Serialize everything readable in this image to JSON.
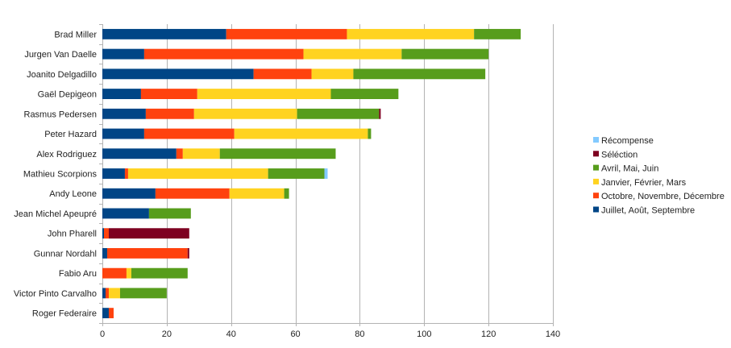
{
  "chart_data": {
    "type": "bar",
    "orientation": "horizontal",
    "stacked": true,
    "title": "",
    "xlabel": "",
    "ylabel": "",
    "xlim": [
      0,
      140
    ],
    "xticks": [
      0,
      20,
      40,
      60,
      80,
      100,
      120,
      140
    ],
    "grid": "vertical",
    "legend_position": "right",
    "categories": [
      "Brad Miller",
      "Jurgen Van Daelle",
      "Joanito Delgadillo",
      "Gaël Depigeon",
      "Rasmus Pedersen",
      "Peter Hazard",
      "Alex Rodriguez",
      "Mathieu Scorpions",
      "Andy Leone",
      "Jean Michel Apeupré",
      "John Pharell",
      "Gunnar Nordahl",
      "Fabio Aru",
      "Victor Pinto Carvalho",
      "Roger Federaire"
    ],
    "series": [
      {
        "name": "Juillet, Août, Septembre",
        "color": "#004586",
        "values": [
          38.5,
          13,
          47,
          12,
          13.5,
          13,
          23,
          7,
          16.5,
          14.5,
          0.5,
          1.5,
          0,
          1,
          2
        ]
      },
      {
        "name": "Octobre, Novembre, Décembre",
        "color": "#ff420e",
        "values": [
          37.5,
          49.5,
          18,
          17.5,
          15,
          28,
          2,
          1,
          23,
          0,
          1.5,
          25,
          7.5,
          1,
          1.5
        ]
      },
      {
        "name": "Janvier, Février, Mars",
        "color": "#ffd320",
        "values": [
          39.5,
          30.5,
          13,
          41.5,
          32,
          41.5,
          11.5,
          43.5,
          17,
          0,
          0,
          0,
          1.5,
          3.5,
          0
        ]
      },
      {
        "name": "Avril, Mai, Juin",
        "color": "#579d1c",
        "values": [
          14.5,
          27,
          41,
          21,
          25.5,
          1,
          36,
          17.5,
          1.5,
          13,
          0,
          0,
          17.5,
          14.5,
          0
        ]
      },
      {
        "name": "Séléction",
        "color": "#7e0021",
        "values": [
          0,
          0,
          0,
          0,
          0.5,
          0,
          0,
          0,
          0,
          0,
          25,
          0.5,
          0,
          0,
          0
        ]
      },
      {
        "name": "Récompense",
        "color": "#83caff",
        "values": [
          0,
          0,
          0,
          0,
          0,
          0,
          0,
          1,
          0,
          0,
          0,
          0,
          0,
          0,
          0
        ]
      }
    ],
    "legend_order": [
      "Récompense",
      "Séléction",
      "Avril, Mai, Juin",
      "Janvier, Février, Mars",
      "Octobre, Novembre, Décembre",
      "Juillet, Août, Septembre"
    ]
  }
}
